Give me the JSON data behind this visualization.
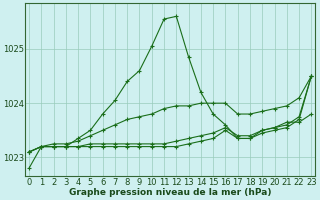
{
  "title": "Graphe pression niveau de la mer (hPa)",
  "background_color": "#cff0f0",
  "grid_color": "#99ccbb",
  "line_color": "#1a6e1a",
  "hours": [
    0,
    1,
    2,
    3,
    4,
    5,
    6,
    7,
    8,
    9,
    10,
    11,
    12,
    13,
    14,
    15,
    16,
    17,
    18,
    19,
    20,
    21,
    22,
    23
  ],
  "series": [
    [
      1022.8,
      1023.2,
      1023.2,
      1023.2,
      1023.35,
      1023.5,
      1023.8,
      1024.05,
      1024.4,
      1024.6,
      1025.05,
      1025.55,
      1025.6,
      1024.85,
      1024.2,
      1023.8,
      1023.6,
      1023.35,
      1023.35,
      1023.5,
      1023.55,
      1023.65,
      1023.65,
      1023.8
    ],
    [
      1023.1,
      1023.2,
      1023.2,
      1023.2,
      1023.2,
      1023.2,
      1023.2,
      1023.2,
      1023.2,
      1023.2,
      1023.2,
      1023.2,
      1023.2,
      1023.25,
      1023.3,
      1023.35,
      1023.5,
      1023.35,
      1023.35,
      1023.45,
      1023.5,
      1023.55,
      1023.7,
      1024.5
    ],
    [
      1023.1,
      1023.2,
      1023.2,
      1023.2,
      1023.2,
      1023.25,
      1023.25,
      1023.25,
      1023.25,
      1023.25,
      1023.25,
      1023.25,
      1023.3,
      1023.35,
      1023.4,
      1023.45,
      1023.55,
      1023.4,
      1023.4,
      1023.5,
      1023.55,
      1023.6,
      1023.75,
      1024.5
    ],
    [
      1023.1,
      1023.2,
      1023.25,
      1023.25,
      1023.3,
      1023.4,
      1023.5,
      1023.6,
      1023.7,
      1023.75,
      1023.8,
      1023.9,
      1023.95,
      1023.95,
      1024.0,
      1024.0,
      1024.0,
      1023.8,
      1023.8,
      1023.85,
      1023.9,
      1023.95,
      1024.1,
      1024.5
    ]
  ],
  "ylim": [
    1022.65,
    1025.85
  ],
  "yticks": [
    1023,
    1024,
    1025
  ],
  "tick_fontsize": 6,
  "title_fontsize": 6.5
}
